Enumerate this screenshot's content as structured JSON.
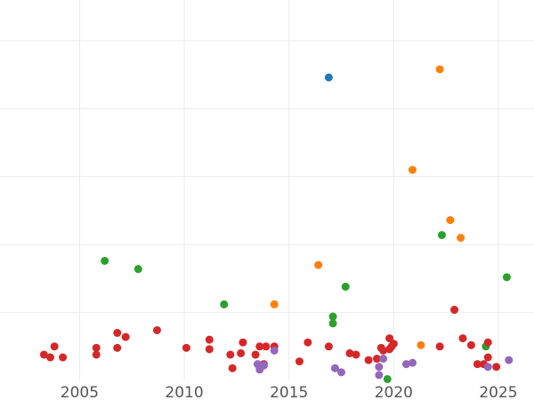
{
  "chart_data": {
    "type": "scatter",
    "title": "",
    "xlabel": "",
    "ylabel": "",
    "xlim": [
      2001.2,
      2026.7
    ],
    "ylim": [
      0,
      28
    ],
    "x_ticks": [
      2005,
      2010,
      2015,
      2020,
      2025
    ],
    "x_tick_labels": [
      "2005",
      "2010",
      "2015",
      "2020",
      "2025"
    ],
    "y_gridlines": [
      5,
      10,
      15,
      20,
      25
    ],
    "grid": true,
    "legend": "none",
    "colors": {
      "blue": "#1f77b4",
      "orange": "#ff7f0e",
      "green": "#2ca02c",
      "red": "#d62728",
      "purple": "#9467bd"
    },
    "series": [
      {
        "color": "#1f77b4",
        "points": [
          [
            2016.9,
            22.3
          ]
        ]
      },
      {
        "color": "#ff7f0e",
        "points": [
          [
            2014.3,
            5.6
          ],
          [
            2016.4,
            8.5
          ],
          [
            2020.9,
            15.5
          ],
          [
            2021.3,
            2.6
          ],
          [
            2022.2,
            22.9
          ],
          [
            2022.7,
            11.8
          ],
          [
            2023.2,
            10.5
          ]
        ]
      },
      {
        "color": "#2ca02c",
        "points": [
          [
            2006.2,
            8.8
          ],
          [
            2007.8,
            8.2
          ],
          [
            2011.9,
            5.6
          ],
          [
            2017.1,
            4.7
          ],
          [
            2017.1,
            4.2
          ],
          [
            2017.7,
            6.9
          ],
          [
            2019.7,
            0.1
          ],
          [
            2022.3,
            10.7
          ],
          [
            2024.4,
            2.5
          ],
          [
            2025.4,
            7.6
          ]
        ]
      },
      {
        "color": "#d62728",
        "points": [
          [
            2003.3,
            1.9
          ],
          [
            2003.6,
            1.7
          ],
          [
            2003.8,
            2.5
          ],
          [
            2004.2,
            1.7
          ],
          [
            2005.8,
            2.4
          ],
          [
            2005.8,
            1.9
          ],
          [
            2006.8,
            3.5
          ],
          [
            2006.8,
            2.4
          ],
          [
            2007.2,
            3.2
          ],
          [
            2008.7,
            3.7
          ],
          [
            2010.1,
            2.4
          ],
          [
            2011.2,
            3.0
          ],
          [
            2011.2,
            2.3
          ],
          [
            2012.2,
            1.9
          ],
          [
            2012.3,
            0.9
          ],
          [
            2012.7,
            2.0
          ],
          [
            2012.8,
            2.8
          ],
          [
            2013.4,
            1.9
          ],
          [
            2013.6,
            2.5
          ],
          [
            2013.8,
            1.2
          ],
          [
            2013.9,
            2.5
          ],
          [
            2014.3,
            2.5
          ],
          [
            2015.5,
            1.4
          ],
          [
            2015.9,
            2.8
          ],
          [
            2016.9,
            2.5
          ],
          [
            2017.9,
            2.0
          ],
          [
            2018.2,
            1.9
          ],
          [
            2018.8,
            1.5
          ],
          [
            2019.2,
            1.6
          ],
          [
            2019.4,
            2.4
          ],
          [
            2019.5,
            2.2
          ],
          [
            2019.8,
            2.3
          ],
          [
            2019.8,
            3.1
          ],
          [
            2019.9,
            2.5
          ],
          [
            2020.0,
            2.7
          ],
          [
            2022.2,
            2.5
          ],
          [
            2022.9,
            5.2
          ],
          [
            2023.3,
            3.1
          ],
          [
            2023.7,
            2.6
          ],
          [
            2024.0,
            1.2
          ],
          [
            2024.3,
            1.2
          ],
          [
            2024.5,
            2.8
          ],
          [
            2024.5,
            1.7
          ],
          [
            2024.9,
            1.0
          ]
        ]
      },
      {
        "color": "#9467bd",
        "points": [
          [
            2013.5,
            1.2
          ],
          [
            2013.6,
            0.8
          ],
          [
            2013.8,
            1.1
          ],
          [
            2014.3,
            2.2
          ],
          [
            2017.2,
            0.9
          ],
          [
            2017.5,
            0.6
          ],
          [
            2019.3,
            1.0
          ],
          [
            2019.3,
            0.4
          ],
          [
            2019.5,
            1.6
          ],
          [
            2020.6,
            1.2
          ],
          [
            2020.9,
            1.3
          ],
          [
            2024.5,
            1.0
          ],
          [
            2025.5,
            1.5
          ]
        ]
      }
    ]
  }
}
